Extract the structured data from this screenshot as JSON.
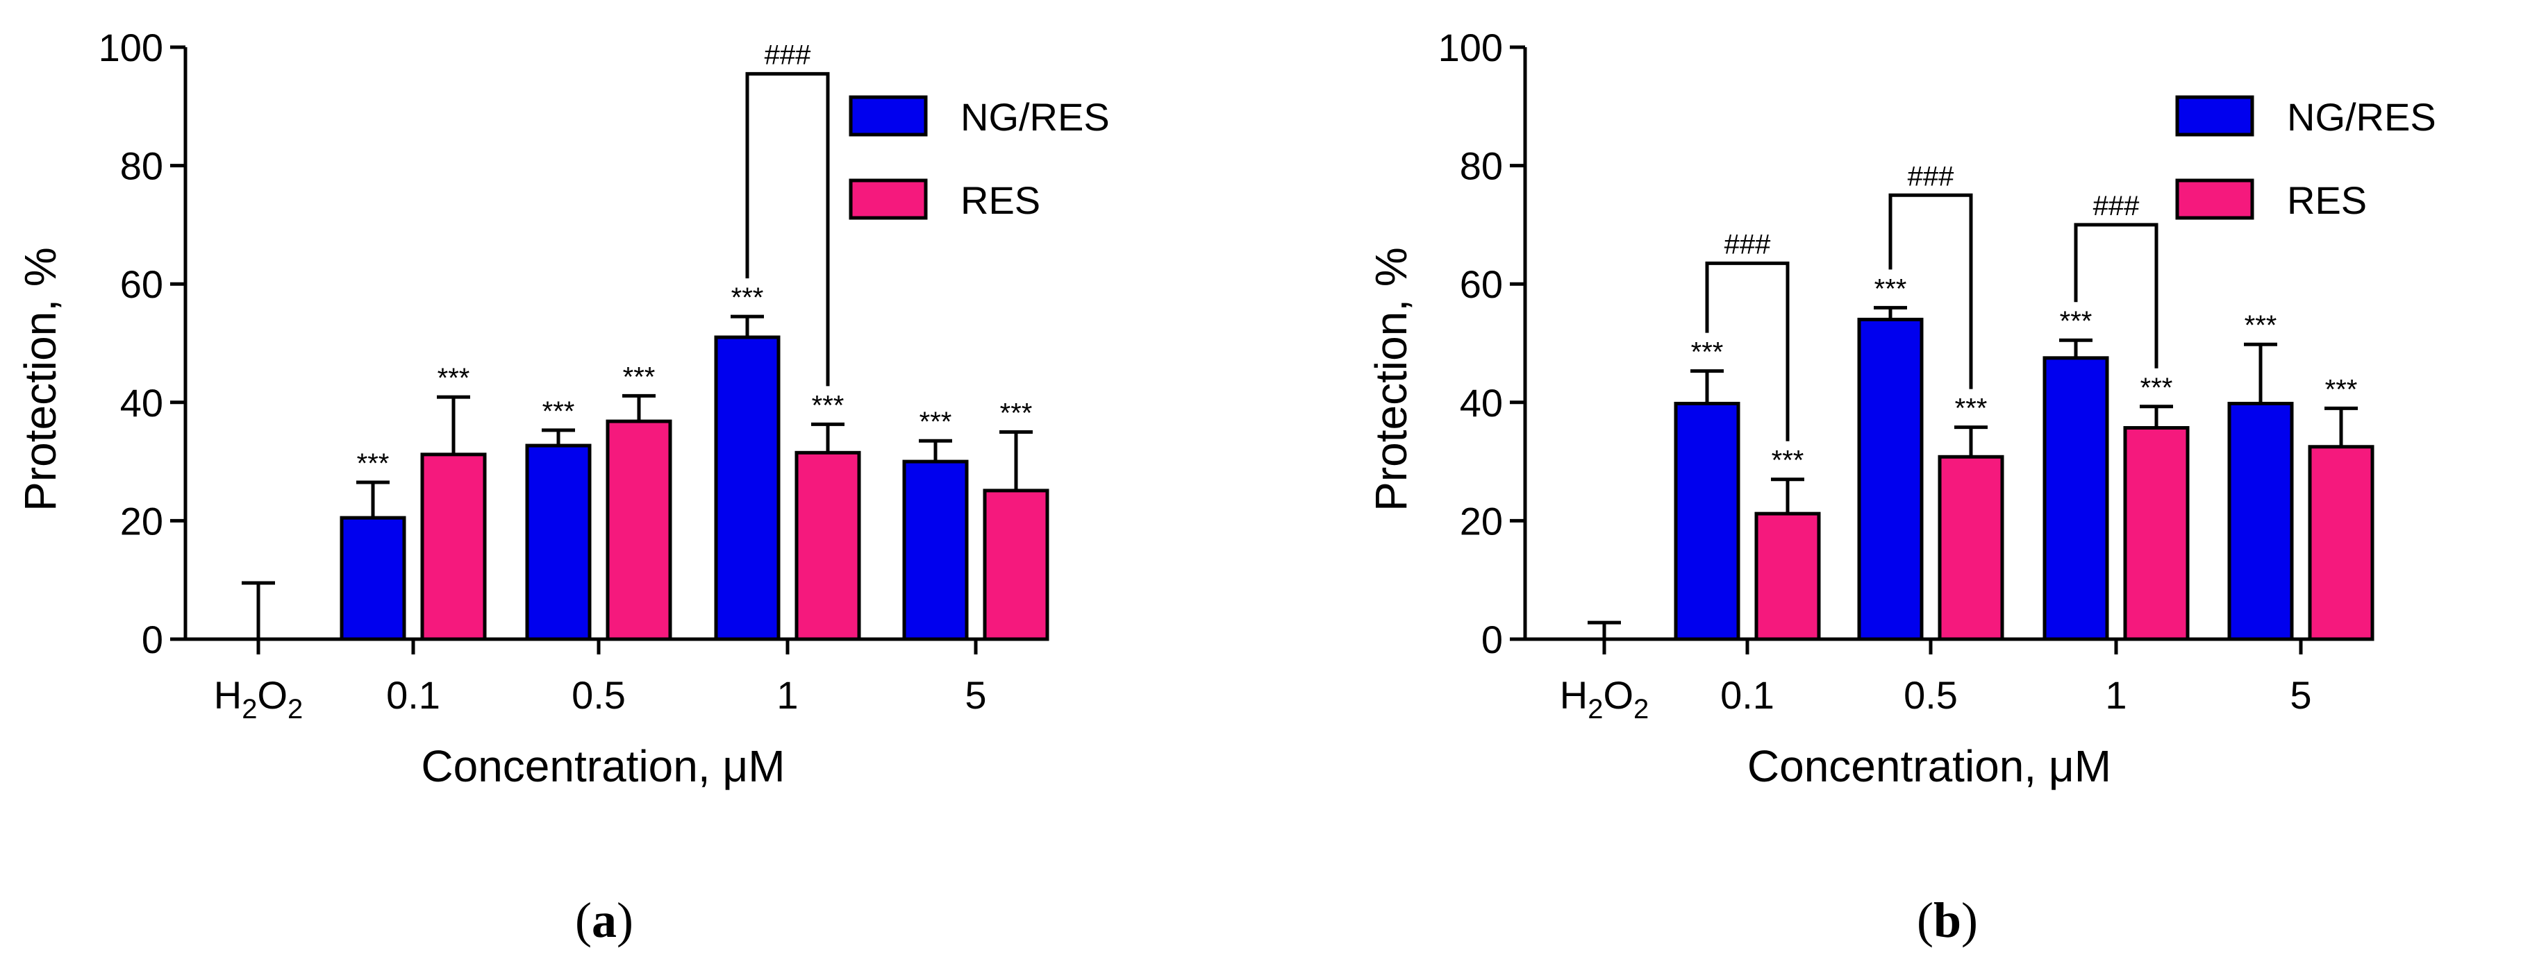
{
  "chart_data": [
    {
      "type": "bar",
      "panel_label": "a",
      "title": "",
      "xlabel": "Concentration, μM",
      "ylabel": "Protection, %",
      "ylim": [
        0,
        100
      ],
      "yticks": [
        "0",
        "20",
        "40",
        "60",
        "80",
        "100"
      ],
      "legend_position": "top-right",
      "control": {
        "label_base": "H",
        "label_sub1": "2",
        "label_mid": "O",
        "label_sub2": "2",
        "value": 0,
        "error": 9.5
      },
      "categories": [
        "0.1",
        "0.5",
        "1",
        "5"
      ],
      "series": [
        {
          "name": "NG/RES",
          "color": "#0000ee",
          "values": [
            20.5,
            32.7,
            51.0,
            30.0
          ],
          "errors": [
            6.0,
            2.6,
            3.5,
            3.5
          ],
          "significance": [
            "***",
            "***",
            "***",
            "***"
          ]
        },
        {
          "name": "RES",
          "color": "#f5197d",
          "values": [
            31.2,
            36.8,
            31.5,
            25.1
          ],
          "errors": [
            9.7,
            4.3,
            4.8,
            9.9
          ],
          "significance": [
            "***",
            "***",
            "***",
            "***"
          ]
        }
      ],
      "comparisons": [
        {
          "category_index": 2,
          "label": "###",
          "top": 95.5
        }
      ]
    },
    {
      "type": "bar",
      "panel_label": "b",
      "title": "",
      "xlabel": "Concentration, μM",
      "ylabel": "Protection, %",
      "ylim": [
        0,
        100
      ],
      "yticks": [
        "0",
        "20",
        "40",
        "60",
        "80",
        "100"
      ],
      "legend_position": "top-right",
      "control": {
        "label_base": "H",
        "label_sub1": "2",
        "label_mid": "O",
        "label_sub2": "2",
        "value": 0,
        "error": 2.8
      },
      "categories": [
        "0.1",
        "0.5",
        "1",
        "5"
      ],
      "series": [
        {
          "name": "NG/RES",
          "color": "#0000ee",
          "values": [
            39.8,
            54.0,
            47.5,
            39.8
          ],
          "errors": [
            5.5,
            2.0,
            3.0,
            10.0
          ],
          "significance": [
            "***",
            "***",
            "***",
            "***"
          ]
        },
        {
          "name": "RES",
          "color": "#f5197d",
          "values": [
            21.2,
            30.8,
            35.7,
            32.5
          ],
          "errors": [
            5.8,
            5.0,
            3.6,
            6.5
          ],
          "significance": [
            "***",
            "***",
            "***",
            "***"
          ]
        }
      ],
      "comparisons": [
        {
          "category_index": 0,
          "label": "###",
          "top": 63.5
        },
        {
          "category_index": 1,
          "label": "###",
          "top": 75.0
        },
        {
          "category_index": 2,
          "label": "###",
          "top": 70.0
        }
      ]
    }
  ]
}
